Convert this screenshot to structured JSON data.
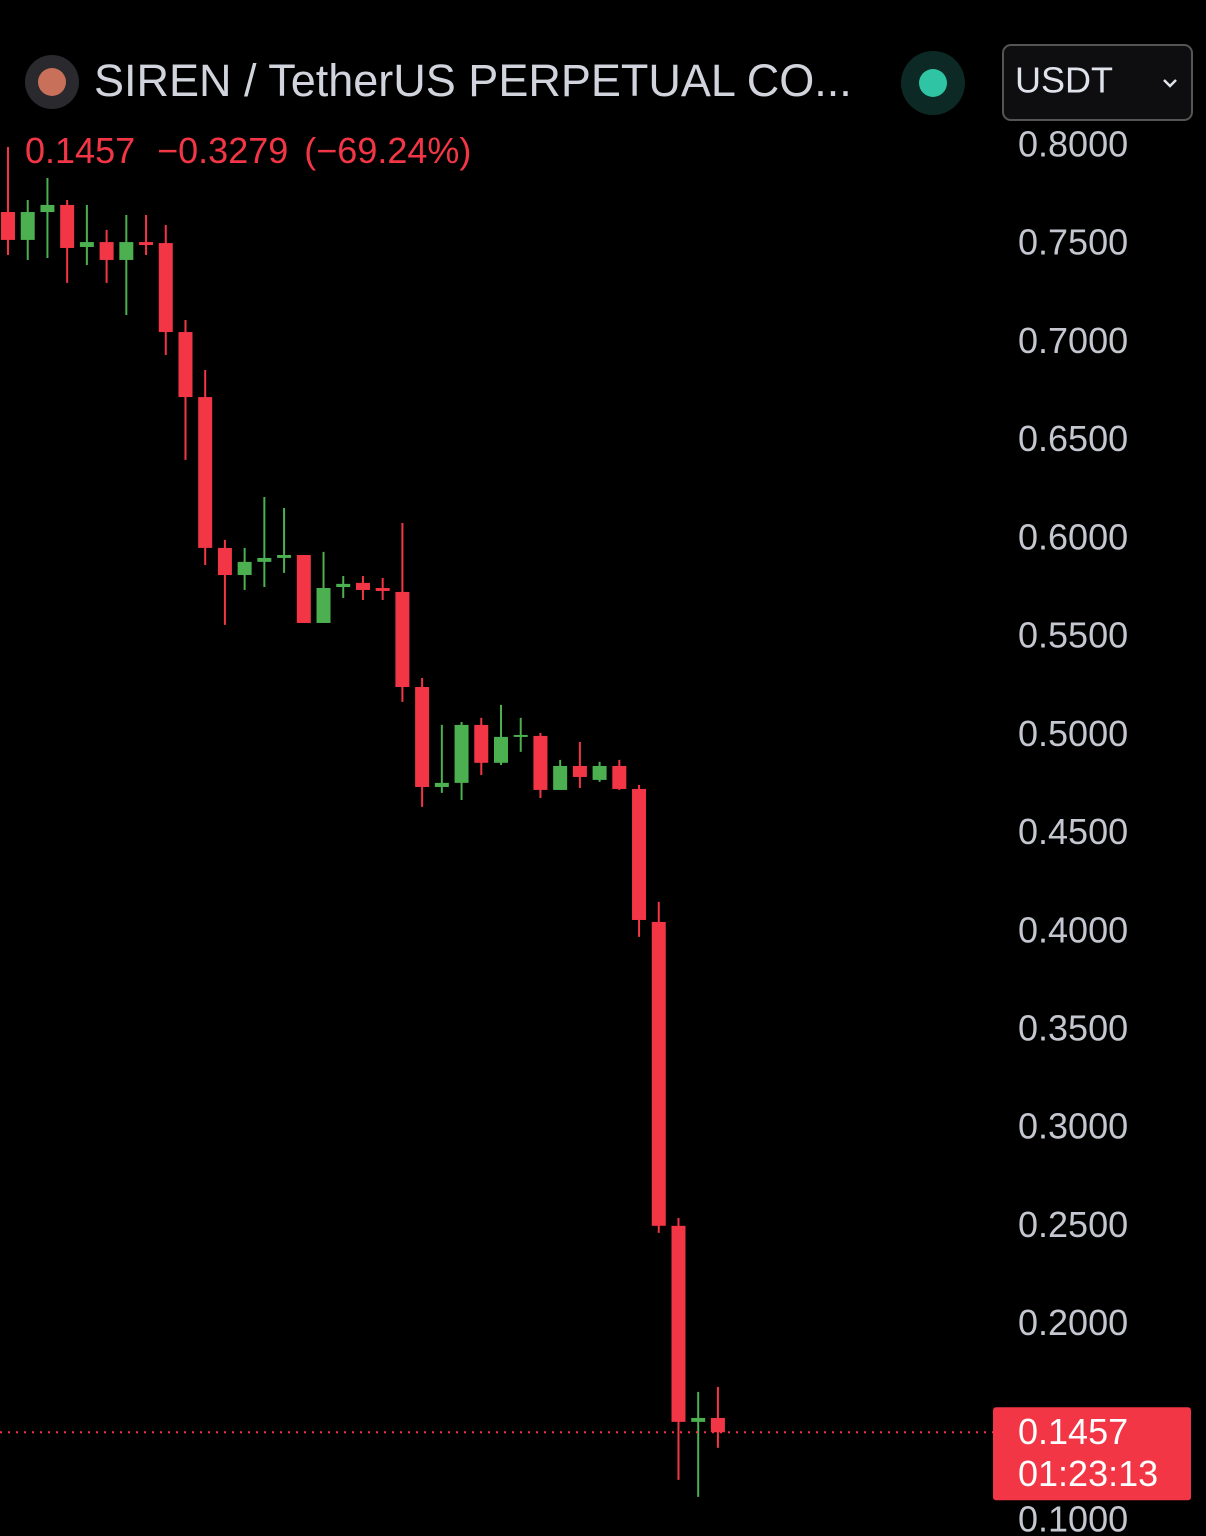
{
  "header": {
    "symbol": "SIREN / TetherUS PERPETUAL CO...",
    "currency": "USDT",
    "price": "0.1457",
    "change": "−0.3279",
    "change_pct": "(−69.24%)"
  },
  "chart_data": {
    "type": "candlestick",
    "open": [
      0.7669,
      0.7527,
      0.7669,
      0.7705,
      0.7491,
      0.7516,
      0.7425,
      0.7516,
      0.7511,
      0.7058,
      0.6727,
      0.5959,
      0.5821,
      0.5888,
      0.5908,
      0.5923,
      0.5577,
      0.576,
      0.5781,
      0.5755,
      0.5735,
      0.5251,
      0.4742,
      0.4763,
      0.5058,
      0.4865,
      0.4997,
      0.5002,
      0.4727,
      0.4849,
      0.4778,
      0.4849,
      0.4732,
      0.4055,
      0.2508,
      0.151,
      0.153
    ],
    "high": [
      0.8,
      0.773,
      0.7842,
      0.773,
      0.7705,
      0.7578,
      0.7654,
      0.7654,
      0.7603,
      0.7119,
      0.6865,
      0.6,
      0.5959,
      0.6218,
      0.6162,
      0.5923,
      0.5939,
      0.5816,
      0.5816,
      0.5806,
      0.6086,
      0.5297,
      0.5058,
      0.5073,
      0.5094,
      0.516,
      0.5094,
      0.5017,
      0.488,
      0.4971,
      0.487,
      0.488,
      0.4753,
      0.4157,
      0.2548,
      0.1663,
      0.1688
    ],
    "low": [
      0.745,
      0.7425,
      0.7435,
      0.7308,
      0.7399,
      0.7308,
      0.7145,
      0.745,
      0.6941,
      0.6407,
      0.5872,
      0.5567,
      0.5745,
      0.576,
      0.5832,
      0.5577,
      0.5577,
      0.5704,
      0.5694,
      0.5694,
      0.5175,
      0.4641,
      0.4712,
      0.4676,
      0.4803,
      0.4854,
      0.4921,
      0.4686,
      0.4727,
      0.4737,
      0.4768,
      0.4727,
      0.3979,
      0.2472,
      0.1215,
      0.1128,
      0.1378
    ],
    "close": [
      0.7527,
      0.7669,
      0.7705,
      0.7486,
      0.7516,
      0.7425,
      0.7516,
      0.7501,
      0.7058,
      0.6727,
      0.5959,
      0.5821,
      0.5888,
      0.5908,
      0.5923,
      0.5577,
      0.5755,
      0.5776,
      0.5745,
      0.574,
      0.5251,
      0.4742,
      0.4763,
      0.5058,
      0.4865,
      0.4997,
      0.5007,
      0.4727,
      0.4849,
      0.4793,
      0.4849,
      0.4732,
      0.4065,
      0.2508,
      0.151,
      0.153,
      0.1457
    ],
    "up_color": "#4caf50",
    "down_color": "#f23645",
    "ylim": [
      0.0929,
      0.8112
    ],
    "yticks": [
      {
        "value": 0.8,
        "label": "0.8000"
      },
      {
        "value": 0.75,
        "label": "0.7500"
      },
      {
        "value": 0.7,
        "label": "0.7000"
      },
      {
        "value": 0.65,
        "label": "0.6500"
      },
      {
        "value": 0.6,
        "label": "0.6000"
      },
      {
        "value": 0.55,
        "label": "0.5500"
      },
      {
        "value": 0.5,
        "label": "0.5000"
      },
      {
        "value": 0.45,
        "label": "0.4500"
      },
      {
        "value": 0.4,
        "label": "0.4000"
      },
      {
        "value": 0.35,
        "label": "0.3500"
      },
      {
        "value": 0.3,
        "label": "0.3000"
      },
      {
        "value": 0.25,
        "label": "0.2500"
      },
      {
        "value": 0.2,
        "label": "0.2000"
      },
      {
        "value": 0.1,
        "label": "0.1000"
      }
    ],
    "last_price": 0.1457,
    "countdown": "01:23:13"
  }
}
